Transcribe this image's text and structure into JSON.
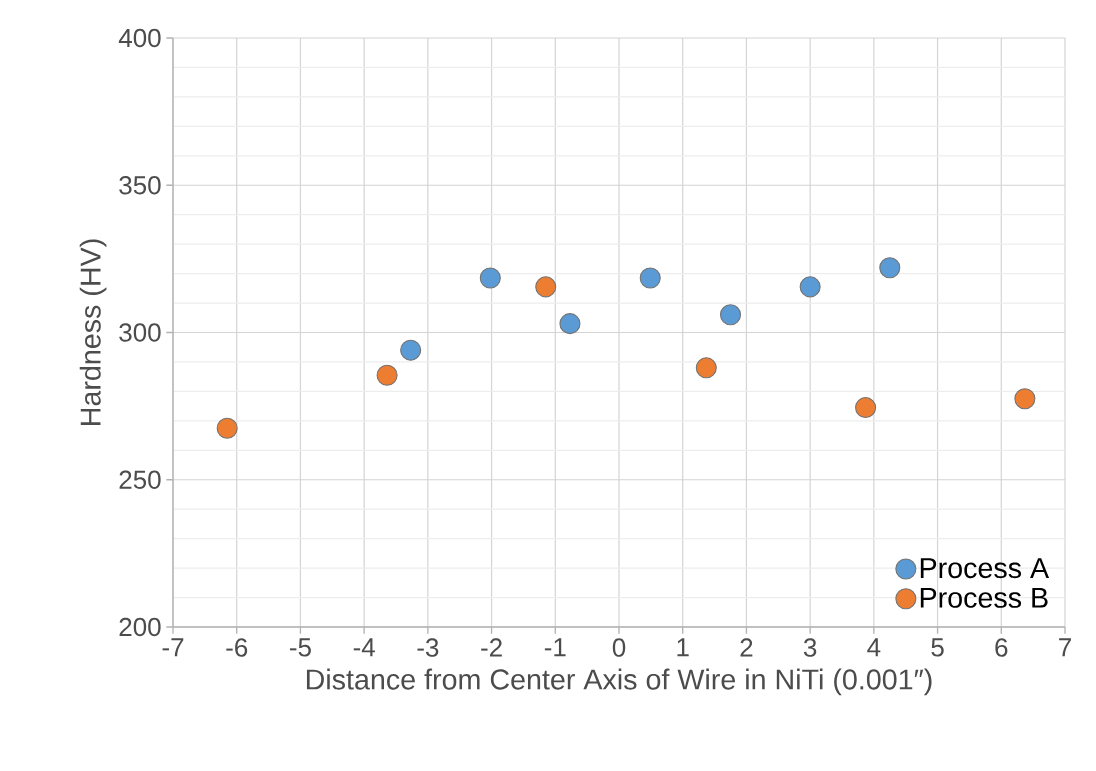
{
  "chart_data": {
    "type": "scatter",
    "xlabel": "Distance from Center Axis of Wire in NiTi (0.001″)",
    "ylabel": "Hardness (HV)",
    "series": [
      {
        "name": "Process A",
        "color": "#5b9bd5",
        "x": [
          -3.27,
          -2.02,
          -0.77,
          0.49,
          1.75,
          3.0,
          4.25
        ],
        "values": [
          294,
          318.5,
          303,
          318.5,
          306,
          315.5,
          322
        ]
      },
      {
        "name": "Process B",
        "color": "#ed7d31",
        "x": [
          -6.15,
          -3.64,
          -1.15,
          1.37,
          3.87,
          6.37
        ],
        "values": [
          267.5,
          285.5,
          315.5,
          288,
          274.5,
          277.5
        ]
      }
    ],
    "xlim": [
      -7,
      7
    ],
    "ylim": [
      200,
      400
    ],
    "xticks": [
      -7,
      -6,
      -5,
      -4,
      -3,
      -2,
      -1,
      0,
      1,
      2,
      3,
      4,
      5,
      6,
      7
    ],
    "yticks": [
      200,
      250,
      300,
      350,
      400
    ],
    "grid": true,
    "legend": "bottom right",
    "marker": "circle"
  }
}
